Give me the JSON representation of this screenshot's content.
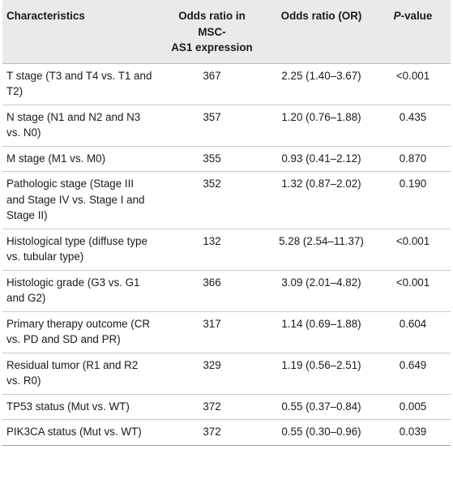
{
  "header": {
    "col1": "Characteristics",
    "col2": "Odds ratio in MSC-AS1 expression",
    "col2_line1": "Odds ratio in",
    "col2_line2": "MSC-",
    "col2_line3": "AS1 expression",
    "col3": "Odds ratio (OR)",
    "col4_italic": "P",
    "col4_rest": "-value"
  },
  "rows": [
    {
      "characteristic": "T stage (T3 and T4 vs. T1 and T2)",
      "n": "367",
      "or": "2.25 (1.40–3.67)",
      "p": "<0.001"
    },
    {
      "characteristic": "N stage (N1 and N2 and N3 vs. N0)",
      "n": "357",
      "or": "1.20 (0.76–1.88)",
      "p": "0.435"
    },
    {
      "characteristic": "M stage (M1 vs. M0)",
      "n": "355",
      "or": "0.93 (0.41–2.12)",
      "p": "0.870"
    },
    {
      "characteristic": "Pathologic stage (Stage III and Stage IV vs. Stage I and Stage II)",
      "n": "352",
      "or": "1.32 (0.87–2.02)",
      "p": "0.190"
    },
    {
      "characteristic": "Histological type (diffuse type vs. tubular type)",
      "n": "132",
      "or": "5.28 (2.54–11.37)",
      "p": "<0.001"
    },
    {
      "characteristic": "Histologic grade (G3 vs. G1 and G2)",
      "n": "366",
      "or": "3.09 (2.01–4.82)",
      "p": "<0.001"
    },
    {
      "characteristic": "Primary therapy outcome (CR vs. PD and SD and PR)",
      "n": "317",
      "or": "1.14 (0.69–1.88)",
      "p": "0.604"
    },
    {
      "characteristic": "Residual tumor (R1 and R2 vs. R0)",
      "n": "329",
      "or": "1.19 (0.56–2.51)",
      "p": "0.649"
    },
    {
      "characteristic": "TP53 status (Mut vs. WT)",
      "n": "372",
      "or": "0.55 (0.37–0.84)",
      "p": "0.005"
    },
    {
      "characteristic": "PIK3CA status (Mut vs. WT)",
      "n": "372",
      "or": "0.55 (0.30–0.96)",
      "p": "0.039"
    }
  ]
}
